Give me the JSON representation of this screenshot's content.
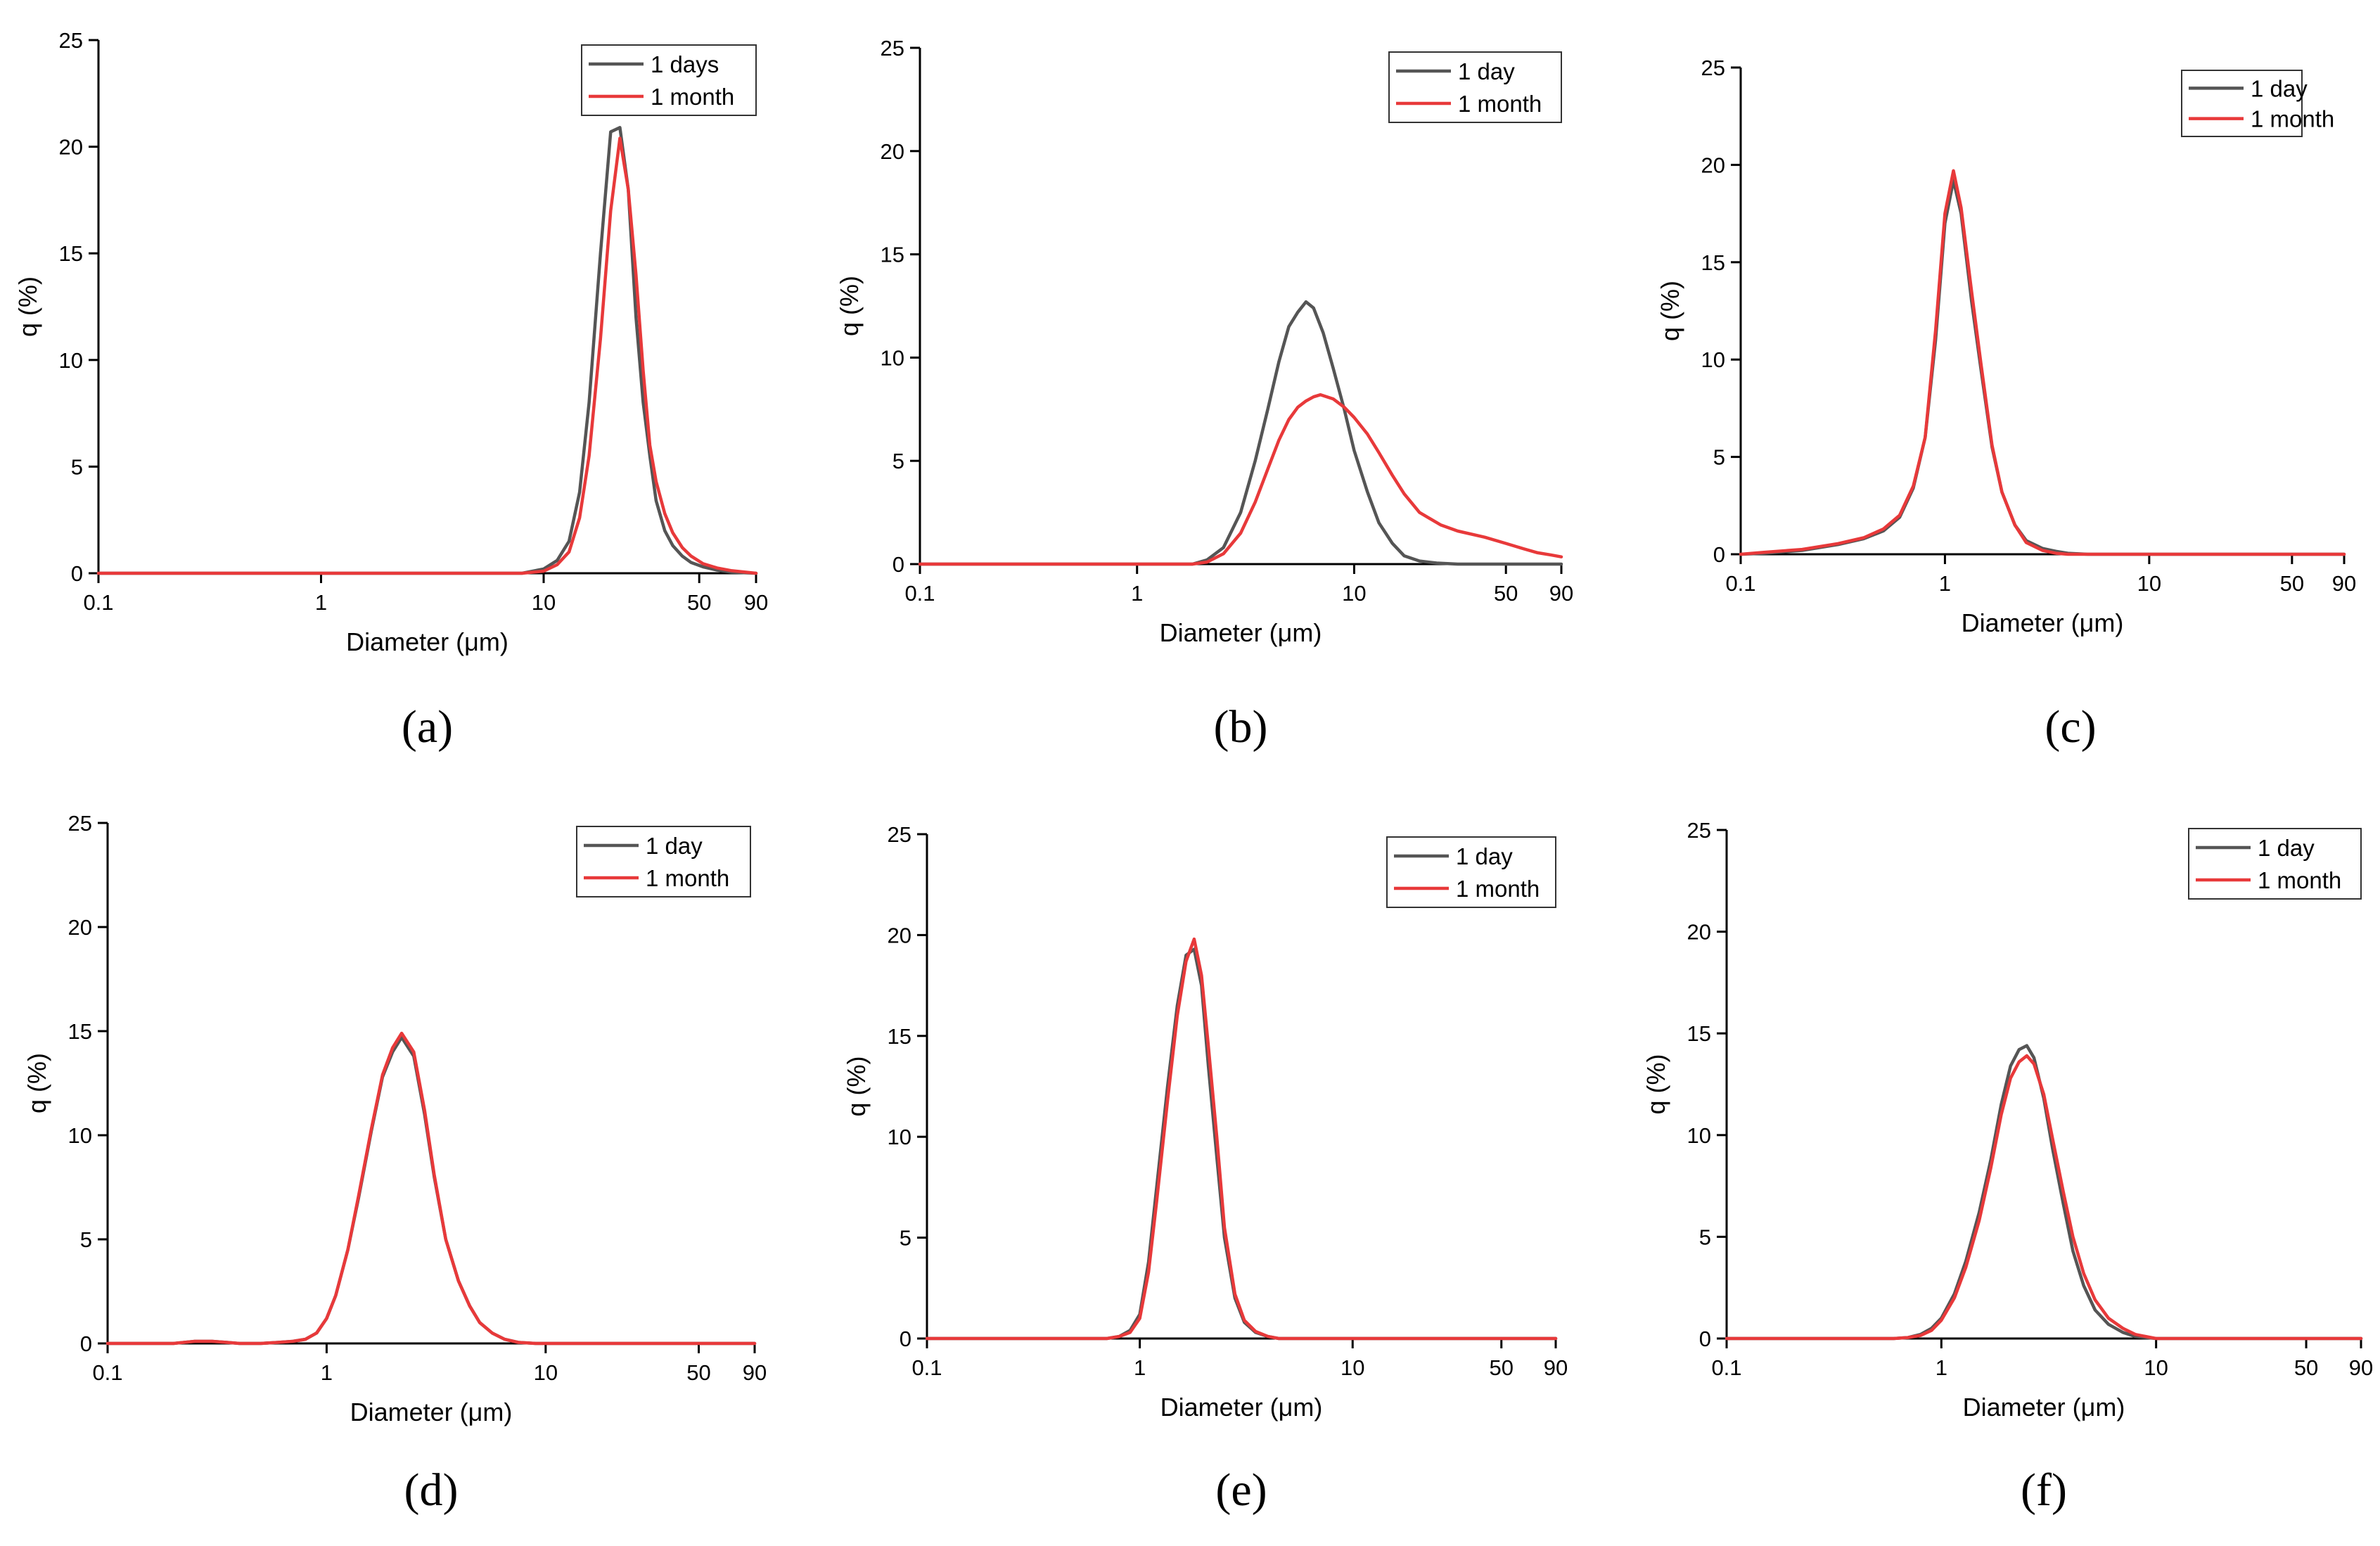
{
  "figure": {
    "panels": [
      "(a)",
      "(b)",
      "(c)",
      "(d)",
      "(e)",
      "(f)"
    ]
  },
  "chart_data": [
    {
      "panel": "(a)",
      "type": "line",
      "title": "",
      "xlabel": "Diameter (μm)",
      "ylabel": "q (%)",
      "xscale": "log",
      "xlim": [
        0.1,
        90
      ],
      "ylim": [
        0,
        25
      ],
      "xticks": [
        0.1,
        1,
        10,
        50,
        90
      ],
      "xtick_labels": [
        "0.1",
        "1",
        "10",
        "50",
        "90"
      ],
      "yticks": [
        0,
        5,
        10,
        15,
        20,
        25
      ],
      "legend_position": "top-right",
      "series": [
        {
          "name": "1 days",
          "color": "#555555",
          "x": [
            0.1,
            8,
            10,
            11.5,
            13,
            14.5,
            16,
            18,
            20,
            22,
            24,
            26,
            28,
            30,
            32,
            35,
            38,
            42,
            46,
            52,
            60,
            70,
            90
          ],
          "y": [
            0,
            0,
            0.2,
            0.6,
            1.5,
            3.8,
            8,
            15,
            20.7,
            20.9,
            18,
            12,
            8,
            5.5,
            3.4,
            2,
            1.3,
            0.8,
            0.5,
            0.3,
            0.15,
            0.05,
            0
          ]
        },
        {
          "name": "1 month",
          "color": "#e8393a",
          "x": [
            0.1,
            8,
            10,
            11.5,
            13,
            14.5,
            16,
            18,
            20,
            22,
            24,
            26,
            28,
            30,
            32,
            35,
            38,
            42,
            46,
            52,
            60,
            70,
            90
          ],
          "y": [
            0,
            0,
            0.1,
            0.4,
            1.0,
            2.6,
            5.5,
            11,
            17,
            20.4,
            18,
            14,
            9.5,
            6,
            4.3,
            2.8,
            1.9,
            1.2,
            0.8,
            0.45,
            0.25,
            0.12,
            0
          ]
        }
      ]
    },
    {
      "panel": "(b)",
      "type": "line",
      "title": "",
      "xlabel": "Diameter (μm)",
      "ylabel": "q (%)",
      "xscale": "log",
      "xlim": [
        0.1,
        90
      ],
      "ylim": [
        0,
        25
      ],
      "xticks": [
        0.1,
        1,
        10,
        50,
        90
      ],
      "xtick_labels": [
        "0.1",
        "1",
        "10",
        "50",
        "90"
      ],
      "yticks": [
        0,
        5,
        10,
        15,
        20,
        25
      ],
      "legend_position": "top-right",
      "series": [
        {
          "name": "1 day",
          "color": "#555555",
          "x": [
            0.1,
            1.8,
            2.1,
            2.5,
            3,
            3.5,
            4,
            4.5,
            5,
            5.5,
            6,
            6.5,
            7.2,
            8,
            9,
            10,
            11.5,
            13,
            15,
            17,
            20,
            24,
            30,
            90
          ],
          "y": [
            0,
            0,
            0.2,
            0.8,
            2.5,
            5,
            7.5,
            9.8,
            11.5,
            12.2,
            12.7,
            12.4,
            11.2,
            9.5,
            7.5,
            5.5,
            3.5,
            2,
            1,
            0.4,
            0.15,
            0.05,
            0,
            0
          ]
        },
        {
          "name": "1 month",
          "color": "#e8393a",
          "x": [
            0.1,
            1.8,
            2.1,
            2.5,
            3,
            3.5,
            4,
            4.5,
            5,
            5.5,
            6,
            6.5,
            7,
            8,
            9,
            10,
            11.5,
            13,
            15,
            17,
            20,
            25,
            30,
            40,
            50,
            60,
            70,
            80,
            90
          ],
          "y": [
            0,
            0,
            0.1,
            0.5,
            1.5,
            3,
            4.6,
            6,
            7,
            7.6,
            7.9,
            8.1,
            8.2,
            8.0,
            7.6,
            7.1,
            6.3,
            5.4,
            4.3,
            3.4,
            2.5,
            1.9,
            1.6,
            1.3,
            1.0,
            0.75,
            0.55,
            0.45,
            0.35
          ]
        }
      ]
    },
    {
      "panel": "(c)",
      "type": "line",
      "title": "",
      "xlabel": "Diameter (μm)",
      "ylabel": "q (%)",
      "xscale": "log",
      "xlim": [
        0.1,
        90
      ],
      "ylim": [
        0,
        25
      ],
      "xticks": [
        0.1,
        1,
        10,
        50,
        90
      ],
      "xtick_labels": [
        "0.1",
        "1",
        "10",
        "50",
        "90"
      ],
      "yticks": [
        0,
        5,
        10,
        15,
        20,
        25
      ],
      "legend_position": "top-right",
      "series": [
        {
          "name": "1 day",
          "color": "#555555",
          "x": [
            0.1,
            0.13,
            0.2,
            0.3,
            0.4,
            0.5,
            0.6,
            0.7,
            0.8,
            0.9,
            1.0,
            1.1,
            1.2,
            1.35,
            1.5,
            1.7,
            1.9,
            2.2,
            2.5,
            3,
            3.5,
            4,
            5,
            90
          ],
          "y": [
            0,
            0.05,
            0.2,
            0.5,
            0.8,
            1.2,
            1.9,
            3.4,
            6,
            11,
            17,
            19.2,
            17.5,
            13,
            9.5,
            5.5,
            3.2,
            1.5,
            0.7,
            0.3,
            0.15,
            0.05,
            0,
            0
          ]
        },
        {
          "name": "1 month",
          "color": "#e8393a",
          "x": [
            0.1,
            0.13,
            0.2,
            0.3,
            0.4,
            0.5,
            0.6,
            0.7,
            0.8,
            0.9,
            1.0,
            1.1,
            1.2,
            1.35,
            1.5,
            1.7,
            1.9,
            2.2,
            2.5,
            3,
            3.5,
            4,
            5,
            90
          ],
          "y": [
            0,
            0.1,
            0.25,
            0.55,
            0.85,
            1.3,
            2,
            3.5,
            6,
            11.5,
            17.5,
            19.7,
            17.8,
            13.5,
            9.8,
            5.6,
            3.2,
            1.5,
            0.6,
            0.2,
            0.05,
            0,
            0,
            0
          ]
        }
      ]
    },
    {
      "panel": "(d)",
      "type": "line",
      "title": "",
      "xlabel": "Diameter (μm)",
      "ylabel": "q (%)",
      "xscale": "log",
      "xlim": [
        0.1,
        90
      ],
      "ylim": [
        0,
        25
      ],
      "xticks": [
        0.1,
        1,
        10,
        50,
        90
      ],
      "xtick_labels": [
        "0.1",
        "1",
        "10",
        "50",
        "90"
      ],
      "yticks": [
        0,
        5,
        10,
        15,
        20,
        25
      ],
      "legend_position": "top-right",
      "series": [
        {
          "name": "1 day",
          "color": "#555555",
          "x": [
            0.1,
            0.2,
            0.25,
            0.3,
            0.35,
            0.4,
            0.5,
            0.6,
            0.7,
            0.8,
            0.9,
            1.0,
            1.1,
            1.25,
            1.4,
            1.6,
            1.8,
            2.0,
            2.2,
            2.5,
            2.8,
            3.1,
            3.5,
            4,
            4.5,
            5,
            5.7,
            6.5,
            7.5,
            9,
            10,
            90
          ],
          "y": [
            0,
            0,
            0.1,
            0.1,
            0.05,
            0,
            0,
            0.05,
            0.1,
            0.2,
            0.5,
            1.2,
            2.3,
            4.5,
            7,
            10.2,
            12.8,
            14,
            14.7,
            13.8,
            11,
            8,
            5,
            3,
            1.8,
            1,
            0.5,
            0.2,
            0.05,
            0,
            0,
            0
          ]
        },
        {
          "name": "1 month",
          "color": "#e8393a",
          "x": [
            0.1,
            0.2,
            0.25,
            0.3,
            0.35,
            0.4,
            0.5,
            0.6,
            0.7,
            0.8,
            0.9,
            1.0,
            1.1,
            1.25,
            1.4,
            1.6,
            1.8,
            2.0,
            2.2,
            2.5,
            2.8,
            3.1,
            3.5,
            4,
            4.5,
            5,
            5.7,
            6.5,
            7.5,
            9,
            10,
            90
          ],
          "y": [
            0,
            0,
            0.1,
            0.1,
            0.05,
            0,
            0,
            0.05,
            0.1,
            0.2,
            0.5,
            1.2,
            2.3,
            4.5,
            7.1,
            10.3,
            12.9,
            14.2,
            14.9,
            14.0,
            11.2,
            8.1,
            5,
            3,
            1.8,
            1,
            0.5,
            0.2,
            0.05,
            0,
            0,
            0
          ]
        }
      ]
    },
    {
      "panel": "(e)",
      "type": "line",
      "title": "",
      "xlabel": "Diameter (μm)",
      "ylabel": "q (%)",
      "xscale": "log",
      "xlim": [
        0.1,
        90
      ],
      "ylim": [
        0,
        25
      ],
      "xticks": [
        0.1,
        1,
        10,
        50,
        90
      ],
      "xtick_labels": [
        "0.1",
        "1",
        "10",
        "50",
        "90"
      ],
      "yticks": [
        0,
        5,
        10,
        15,
        20,
        25
      ],
      "legend_position": "top-right",
      "series": [
        {
          "name": "1 day",
          "color": "#555555",
          "x": [
            0.1,
            0.7,
            0.8,
            0.9,
            1.0,
            1.1,
            1.2,
            1.35,
            1.5,
            1.65,
            1.8,
            1.95,
            2.1,
            2.3,
            2.5,
            2.8,
            3.1,
            3.5,
            4,
            4.5,
            5,
            6,
            90
          ],
          "y": [
            0,
            0,
            0.1,
            0.4,
            1.2,
            3.8,
            7.5,
            12.5,
            16.5,
            19,
            19.3,
            17.5,
            13.5,
            9,
            5,
            2,
            0.8,
            0.3,
            0.1,
            0,
            0,
            0,
            0
          ]
        },
        {
          "name": "1 month",
          "color": "#e8393a",
          "x": [
            0.1,
            0.7,
            0.8,
            0.9,
            1.0,
            1.1,
            1.2,
            1.35,
            1.5,
            1.65,
            1.8,
            1.95,
            2.1,
            2.3,
            2.5,
            2.8,
            3.1,
            3.5,
            4,
            4.5,
            5,
            6,
            90
          ],
          "y": [
            0,
            0,
            0.1,
            0.3,
            1.0,
            3.3,
            6.8,
            11.8,
            16,
            18.7,
            19.8,
            18,
            14.5,
            10,
            5.5,
            2.2,
            0.9,
            0.35,
            0.1,
            0,
            0,
            0,
            0
          ]
        }
      ]
    },
    {
      "panel": "(f)",
      "type": "line",
      "title": "",
      "xlabel": "Diameter (μm)",
      "ylabel": "q (%)",
      "xscale": "log",
      "xlim": [
        0.1,
        90
      ],
      "ylim": [
        0,
        25
      ],
      "xticks": [
        0.1,
        1,
        10,
        50,
        90
      ],
      "xtick_labels": [
        "0.1",
        "1",
        "10",
        "50",
        "90"
      ],
      "yticks": [
        0,
        5,
        10,
        15,
        20,
        25
      ],
      "legend_position": "top-right",
      "series": [
        {
          "name": "1 day",
          "color": "#555555",
          "x": [
            0.1,
            0.6,
            0.7,
            0.8,
            0.9,
            1.0,
            1.15,
            1.3,
            1.5,
            1.7,
            1.9,
            2.1,
            2.3,
            2.5,
            2.7,
            3.0,
            3.3,
            3.7,
            4.1,
            4.6,
            5.2,
            6,
            7,
            8,
            10,
            90
          ],
          "y": [
            0,
            0,
            0.05,
            0.2,
            0.5,
            1.0,
            2.2,
            3.8,
            6.2,
            8.8,
            11.5,
            13.4,
            14.2,
            14.4,
            13.8,
            11.8,
            9.3,
            6.6,
            4.3,
            2.6,
            1.4,
            0.7,
            0.3,
            0.1,
            0,
            0
          ]
        },
        {
          "name": "1 month",
          "color": "#e8393a",
          "x": [
            0.1,
            0.6,
            0.7,
            0.8,
            0.9,
            1.0,
            1.15,
            1.3,
            1.5,
            1.7,
            1.9,
            2.1,
            2.3,
            2.5,
            2.7,
            3.0,
            3.3,
            3.7,
            4.1,
            4.6,
            5.2,
            6,
            7,
            8,
            10,
            90
          ],
          "y": [
            0,
            0,
            0.05,
            0.15,
            0.4,
            0.9,
            2.0,
            3.5,
            5.8,
            8.4,
            11.0,
            12.8,
            13.6,
            13.9,
            13.5,
            12.0,
            9.8,
            7.2,
            5.0,
            3.2,
            1.9,
            1.0,
            0.5,
            0.2,
            0,
            0
          ]
        }
      ]
    }
  ]
}
